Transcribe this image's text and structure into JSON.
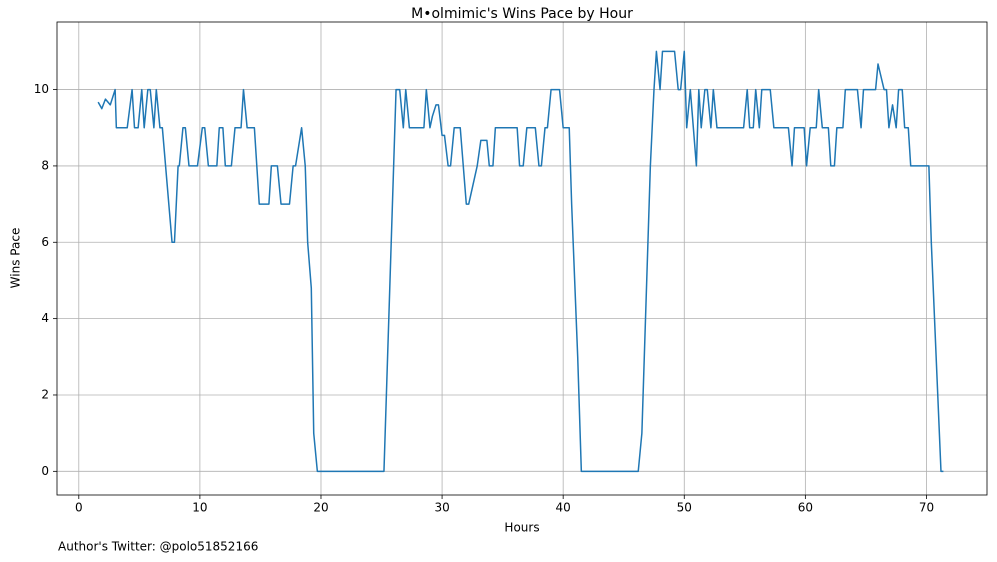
{
  "chart_data": {
    "type": "line",
    "title": "M•olmimic's Wins Pace by Hour",
    "xlabel": "Hours",
    "ylabel": "Wins Pace",
    "footnote": "Author's Twitter: @polo51852166",
    "xlim": [
      -1.8,
      75.0
    ],
    "ylim": [
      -0.62,
      11.77
    ],
    "xticks": [
      0,
      10,
      20,
      30,
      40,
      50,
      60,
      70
    ],
    "yticks": [
      0,
      2,
      4,
      6,
      8,
      10
    ],
    "grid": true,
    "x": [
      1.6,
      1.9,
      2.2,
      2.6,
      3.0,
      3.1,
      4.0,
      4.4,
      4.6,
      4.9,
      5.2,
      5.4,
      5.7,
      5.9,
      6.2,
      6.4,
      6.7,
      6.9,
      7.3,
      7.7,
      7.9,
      8.2,
      8.3,
      8.6,
      8.8,
      9.1,
      9.8,
      10.2,
      10.4,
      10.7,
      11.4,
      11.6,
      11.9,
      12.1,
      12.6,
      12.9,
      13.4,
      13.6,
      13.9,
      14.5,
      14.9,
      15.7,
      15.9,
      16.4,
      16.7,
      17.4,
      17.7,
      17.9,
      18.4,
      18.7,
      18.9,
      19.2,
      19.4,
      19.7,
      25.2,
      25.4,
      25.7,
      25.9,
      26.2,
      26.5,
      26.8,
      27.0,
      27.3,
      28.5,
      28.7,
      29.0,
      29.2,
      29.5,
      29.7,
      30.0,
      30.2,
      30.5,
      30.7,
      31.0,
      31.5,
      32.0,
      32.2,
      32.9,
      33.2,
      33.7,
      33.9,
      34.2,
      34.4,
      36.2,
      36.4,
      36.7,
      37.0,
      37.7,
      38.0,
      38.2,
      38.5,
      38.7,
      39.0,
      39.7,
      40.0,
      40.5,
      40.7,
      41.2,
      41.5,
      46.2,
      46.5,
      46.7,
      47.0,
      47.2,
      47.5,
      47.7,
      48.0,
      48.2,
      49.2,
      49.5,
      49.7,
      50.0,
      50.2,
      50.5,
      51.0,
      51.2,
      51.4,
      51.7,
      51.9,
      52.2,
      52.4,
      52.7,
      54.9,
      55.2,
      55.4,
      55.7,
      55.9,
      56.2,
      56.4,
      57.1,
      57.4,
      58.6,
      58.9,
      59.1,
      59.9,
      60.1,
      60.4,
      60.9,
      61.1,
      61.4,
      61.9,
      62.1,
      62.4,
      62.6,
      63.1,
      63.3,
      64.3,
      64.6,
      64.8,
      65.8,
      66.0,
      66.5,
      66.7,
      66.9,
      67.2,
      67.5,
      67.7,
      68.0,
      68.2,
      68.5,
      68.7,
      70.2,
      70.4,
      71.2,
      71.4
    ],
    "series": [
      {
        "name": "Wins Pace",
        "color": "#1f77b4",
        "values": [
          9.67,
          9.5,
          9.75,
          9.6,
          10,
          9,
          9,
          10,
          9,
          9,
          10,
          9,
          10,
          10,
          9,
          10,
          9,
          9,
          7.5,
          6,
          6,
          8,
          8,
          9,
          9,
          8,
          8,
          9,
          9,
          8,
          8,
          9,
          9,
          8,
          8,
          9,
          9,
          10,
          9,
          9,
          7,
          7,
          8,
          8,
          7,
          7,
          8,
          8,
          9,
          8,
          6,
          4.8,
          1,
          0,
          0,
          2,
          5,
          7,
          10,
          10,
          9,
          10,
          9,
          9,
          10,
          9,
          9.3,
          9.6,
          9.6,
          8.8,
          8.8,
          8,
          8,
          9,
          9,
          7,
          7,
          8,
          8.67,
          8.67,
          8,
          8,
          9,
          9,
          8,
          8,
          9,
          9,
          8,
          8,
          9,
          9,
          10,
          10,
          9,
          9,
          7,
          3,
          0,
          0,
          1,
          3,
          6,
          8,
          10,
          11,
          10,
          11,
          11,
          10,
          10,
          11,
          9,
          10,
          8,
          10,
          9,
          10,
          10,
          9,
          10,
          9,
          9,
          10,
          9,
          9,
          10,
          9,
          10,
          10,
          9,
          9,
          8,
          9,
          9,
          8,
          9,
          9,
          10,
          9,
          9,
          8,
          8,
          9,
          9,
          10,
          10,
          9,
          10,
          10,
          10.67,
          10,
          10,
          9,
          9.6,
          9,
          10,
          10,
          9,
          9,
          8,
          8,
          6,
          0,
          0
        ]
      }
    ]
  }
}
